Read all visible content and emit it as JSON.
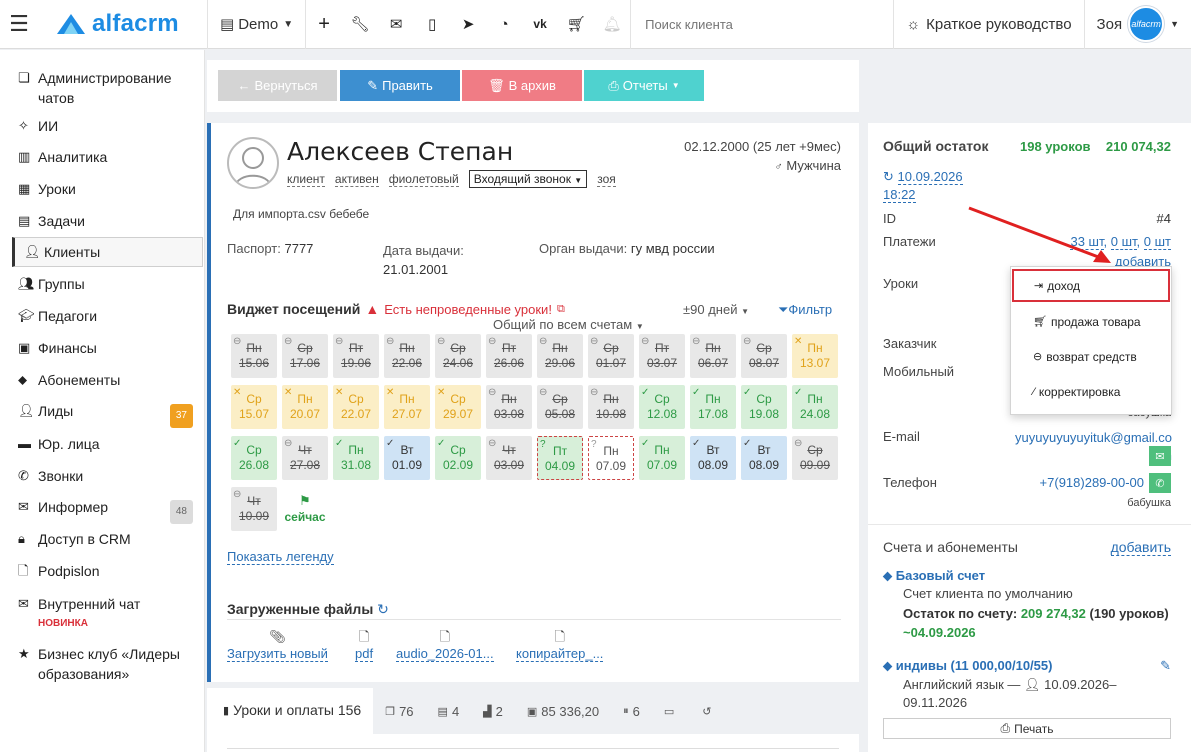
{
  "topbar": {
    "brand": "alfacrm",
    "branch": "Demo",
    "search_placeholder": "Поиск клиента",
    "guide": "Краткое руководство",
    "user": "Зоя",
    "avatar_text": "alfacrm"
  },
  "sidebar": {
    "items": [
      {
        "label": "Администрирование чатов",
        "icon": "chat-admin-icon"
      },
      {
        "label": "ИИ",
        "icon": "sparkle-icon"
      },
      {
        "label": "Аналитика",
        "icon": "map-icon"
      },
      {
        "label": "Уроки",
        "icon": "calendar-icon"
      },
      {
        "label": "Задачи",
        "icon": "clipboard-icon"
      },
      {
        "label": "Клиенты",
        "icon": "user-icon"
      },
      {
        "label": "Группы",
        "icon": "users-icon"
      },
      {
        "label": "Педагоги",
        "icon": "graduation-icon"
      },
      {
        "label": "Финансы",
        "icon": "money-icon"
      },
      {
        "label": "Абонементы",
        "icon": "tag-icon"
      },
      {
        "label": "Лиды",
        "icon": "user-plus-icon",
        "badge": "37"
      },
      {
        "label": "Юр. лица",
        "icon": "briefcase-icon"
      },
      {
        "label": "Звонки",
        "icon": "phone-icon"
      },
      {
        "label": "Информер",
        "icon": "envelope-icon",
        "badge": "48"
      },
      {
        "label": "Доступ в CRM",
        "icon": "lock-icon"
      },
      {
        "label": "Podpislon",
        "icon": "file-icon"
      },
      {
        "label": "Внутренний чат",
        "icon": "envelope-icon",
        "note": "НОВИНКА"
      },
      {
        "label": "Бизнес клуб «Лидеры образования»",
        "icon": "star-icon"
      }
    ]
  },
  "actions": {
    "back": "Вернуться",
    "edit": "Править",
    "archive": "В архив",
    "reports": "Отчеты"
  },
  "client": {
    "name": "Алексеев Степан",
    "birth": "02.12.2000 (25 лет +9мес)",
    "gender": "Мужчина",
    "tags": [
      "клиент",
      "активен",
      "фиолетовый"
    ],
    "status_select": "Входящий звонок",
    "zoya": "зоя",
    "note": "Для импорта.csv бебебе",
    "passport_label": "Паспорт:",
    "passport_value": "7777",
    "issue_date_label": "Дата выдачи:",
    "issue_date_value": "21.01.2001",
    "issuer_label": "Орган выдачи:",
    "issuer_value": "гу мвд россии"
  },
  "widget": {
    "title": "Виджет посещений",
    "warning": "Есть непроведенные уроки!",
    "range": "±90 дней",
    "filter": "Фильтр",
    "account": "Общий по всем счетам",
    "now": "сейчас",
    "show_legend": "Показать легенду",
    "cells": [
      {
        "d": "Пн",
        "n": "15.06",
        "c": "grey",
        "s": true
      },
      {
        "d": "Ср",
        "n": "17.06",
        "c": "grey",
        "s": true
      },
      {
        "d": "Пт",
        "n": "19.06",
        "c": "grey",
        "s": true
      },
      {
        "d": "Пн",
        "n": "22.06",
        "c": "grey",
        "s": true
      },
      {
        "d": "Ср",
        "n": "24.06",
        "c": "grey",
        "s": true
      },
      {
        "d": "Пт",
        "n": "26.06",
        "c": "grey",
        "s": true
      },
      {
        "d": "Пн",
        "n": "29.06",
        "c": "grey",
        "s": true
      },
      {
        "d": "Ср",
        "n": "01.07",
        "c": "grey",
        "s": true
      },
      {
        "d": "Пт",
        "n": "03.07",
        "c": "grey",
        "s": true
      },
      {
        "d": "Пн",
        "n": "06.07",
        "c": "grey",
        "s": true
      },
      {
        "d": "Ср",
        "n": "08.07",
        "c": "grey",
        "s": true
      },
      {
        "d": "Пн",
        "n": "13.07",
        "c": "yel",
        "s": false
      },
      {
        "d": "Ср",
        "n": "15.07",
        "c": "yel",
        "s": false
      },
      {
        "d": "Пн",
        "n": "20.07",
        "c": "yel",
        "s": false
      },
      {
        "d": "Ср",
        "n": "22.07",
        "c": "yel",
        "s": false
      },
      {
        "d": "Пн",
        "n": "27.07",
        "c": "yel",
        "s": false
      },
      {
        "d": "Ср",
        "n": "29.07",
        "c": "yel",
        "s": false
      },
      {
        "d": "Пн",
        "n": "03.08",
        "c": "grey",
        "s": true
      },
      {
        "d": "Ср",
        "n": "05.08",
        "c": "grey",
        "s": true
      },
      {
        "d": "Пн",
        "n": "10.08",
        "c": "grey",
        "s": true
      },
      {
        "d": "Ср",
        "n": "12.08",
        "c": "grn",
        "s": false
      },
      {
        "d": "Пн",
        "n": "17.08",
        "c": "grn",
        "s": false
      },
      {
        "d": "Ср",
        "n": "19.08",
        "c": "grn",
        "s": false
      },
      {
        "d": "Пн",
        "n": "24.08",
        "c": "grn",
        "s": false
      },
      {
        "d": "Ср",
        "n": "26.08",
        "c": "grn",
        "s": false
      },
      {
        "d": "Чт",
        "n": "27.08",
        "c": "grey",
        "s": true
      },
      {
        "d": "Пн",
        "n": "31.08",
        "c": "grn",
        "s": false
      },
      {
        "d": "Вт",
        "n": "01.09",
        "c": "blu",
        "s": false
      },
      {
        "d": "Ср",
        "n": "02.09",
        "c": "grn",
        "s": false
      },
      {
        "d": "Чт",
        "n": "03.09",
        "c": "grey",
        "s": true
      },
      {
        "d": "Пт",
        "n": "04.09",
        "c": "dashg",
        "s": false
      },
      {
        "d": "Пн",
        "n": "07.09",
        "c": "dash",
        "s": false
      },
      {
        "d": "Пн",
        "n": "07.09",
        "c": "grn",
        "s": false
      },
      {
        "d": "Вт",
        "n": "08.09",
        "c": "blu",
        "s": false
      },
      {
        "d": "Вт",
        "n": "08.09",
        "c": "blu",
        "s": false
      },
      {
        "d": "Ср",
        "n": "09.09",
        "c": "grey",
        "s": true
      },
      {
        "d": "Чт",
        "n": "10.09",
        "c": "grey",
        "s": true
      }
    ]
  },
  "files": {
    "title": "Загруженные файлы",
    "items": [
      "Загрузить новый",
      "pdf",
      "audio_2026-01...",
      "копирайтер_..."
    ]
  },
  "tabs": [
    {
      "label": "Уроки и оплаты 156",
      "icon": "book-icon"
    },
    {
      "label": "76",
      "icon": "comments-icon"
    },
    {
      "label": "4",
      "icon": "list-icon"
    },
    {
      "label": "2",
      "icon": "chart-icon"
    },
    {
      "label": "85 336,20",
      "icon": "gift-icon"
    },
    {
      "label": "6",
      "icon": "pause-icon"
    },
    {
      "label": "",
      "icon": "cash-icon"
    },
    {
      "label": "",
      "icon": "history-icon"
    }
  ],
  "right": {
    "balance_label": "Общий остаток",
    "balance_lessons": "198 уроков",
    "balance_sum": "210 074,32",
    "sync_date": "10.09.2026",
    "sync_time": "18:22",
    "id_label": "ID",
    "id_value": "#4",
    "payments_label": "Платежи",
    "payments_1": "33 шт",
    "payments_2": "0 шт",
    "payments_3": "0 шт",
    "add": "добавить",
    "lessons_label": "Уроки",
    "customer_label": "Заказчик",
    "mobile_label": "Мобильный",
    "mobile_owner": "бабушка",
    "email_label": "E-mail",
    "email_value": "yuyuyuyuyuyituk@gmail.com",
    "phone_label": "Телефон",
    "phone_value": "+7(918)289-00-00",
    "phone_owner": "бабушка",
    "accounts_title": "Счета и абонементы",
    "accounts_add": "добавить",
    "acc1_title": "Базовый счет",
    "acc1_desc": "Счет клиента по умолчанию",
    "acc1_balance_label": "Остаток по счету:",
    "acc1_balance": "209 274,32",
    "acc1_lessons": "(190 уроков)",
    "acc1_date": "~04.09.2026",
    "acc2_title": "индивы (11 000,00/10/55)",
    "acc2_desc": "Английский язык —",
    "acc2_dates": "10.09.2026–09.11.2026",
    "print": "Печать"
  },
  "dropdown": {
    "items": [
      {
        "label": "доход",
        "icon": "sign-in-icon"
      },
      {
        "label": "продажа товара",
        "icon": "cart-icon"
      },
      {
        "label": "возврат средств",
        "icon": "minus-circle-icon"
      },
      {
        "label": "корректировка",
        "icon": "magic-icon"
      }
    ]
  },
  "colors": {
    "blue": "#2a6fb5",
    "green": "#2d9a45",
    "red": "#d9303a",
    "btn_back": "#d4d4d4",
    "btn_edit": "#3d8fd0",
    "btn_archive": "#f07c85",
    "btn_reports": "#4fd2cf"
  }
}
